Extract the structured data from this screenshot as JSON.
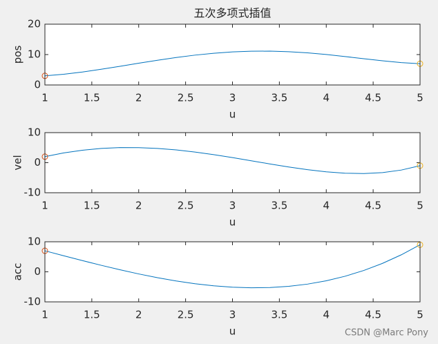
{
  "chart_data": [
    {
      "type": "line",
      "title": "五次多项式插值",
      "xlabel": "u",
      "ylabel": "pos",
      "x": [
        1,
        1.2,
        1.4,
        1.6,
        1.8,
        2,
        2.2,
        2.4,
        2.6,
        2.8,
        3,
        3.2,
        3.4,
        3.6,
        3.8,
        4,
        4.2,
        4.4,
        4.6,
        4.8,
        5
      ],
      "values": [
        3,
        3.529,
        4.272,
        5.165,
        6.145,
        7.152,
        8.132,
        9.034,
        9.815,
        10.438,
        10.875,
        11.108,
        11.129,
        10.942,
        10.562,
        10.02,
        9.359,
        8.641,
        7.942,
        7.357,
        7
      ],
      "color": "#0072bd",
      "start_marker_color": "#d95319",
      "end_marker_color": "#edb120",
      "xlim": [
        1,
        5
      ],
      "ylim": [
        0,
        20
      ],
      "xticks": [
        1,
        1.5,
        2,
        2.5,
        3,
        3.5,
        4,
        4.5,
        5
      ],
      "yticks": [
        0,
        10,
        20
      ]
    },
    {
      "type": "line",
      "xlabel": "u",
      "ylabel": "vel",
      "x": [
        1,
        1.2,
        1.4,
        1.6,
        1.8,
        2,
        2.2,
        2.4,
        2.6,
        2.8,
        3,
        3.2,
        3.4,
        3.6,
        3.8,
        4,
        4.2,
        4.4,
        4.6,
        4.8,
        5
      ],
      "values": [
        2,
        3.235,
        4.144,
        4.733,
        5.016,
        5.012,
        4.744,
        4.24,
        3.536,
        2.67,
        1.688,
        0.638,
        -0.424,
        -1.437,
        -2.337,
        -3.051,
        -3.504,
        -3.615,
        -3.297,
        -2.457,
        -1
      ],
      "color": "#0072bd",
      "start_marker_color": "#d95319",
      "end_marker_color": "#edb120",
      "xlim": [
        1,
        5
      ],
      "ylim": [
        -10,
        10
      ],
      "xticks": [
        1,
        1.5,
        2,
        2.5,
        3,
        3.5,
        4,
        4.5,
        5
      ],
      "yticks": [
        -10,
        0,
        10
      ]
    },
    {
      "type": "line",
      "xlabel": "u",
      "ylabel": "acc",
      "x": [
        1,
        1.2,
        1.4,
        1.6,
        1.8,
        2,
        2.2,
        2.4,
        2.6,
        2.8,
        3,
        3.2,
        3.4,
        3.6,
        3.8,
        4,
        4.2,
        4.4,
        4.6,
        4.8,
        5
      ],
      "values": [
        7,
        5.354,
        3.735,
        2.168,
        0.68,
        -0.703,
        -1.955,
        -3.049,
        -3.96,
        -4.661,
        -5.125,
        -5.327,
        -5.24,
        -4.838,
        -4.095,
        -2.984,
        -1.48,
        0.444,
        2.815,
        5.658,
        9
      ],
      "color": "#0072bd",
      "start_marker_color": "#d95319",
      "end_marker_color": "#edb120",
      "xlim": [
        1,
        5
      ],
      "ylim": [
        -10,
        10
      ],
      "xticks": [
        1,
        1.5,
        2,
        2.5,
        3,
        3.5,
        4,
        4.5,
        5
      ],
      "yticks": [
        -10,
        0,
        10
      ]
    }
  ],
  "watermark": "CSDN @Marc Pony"
}
